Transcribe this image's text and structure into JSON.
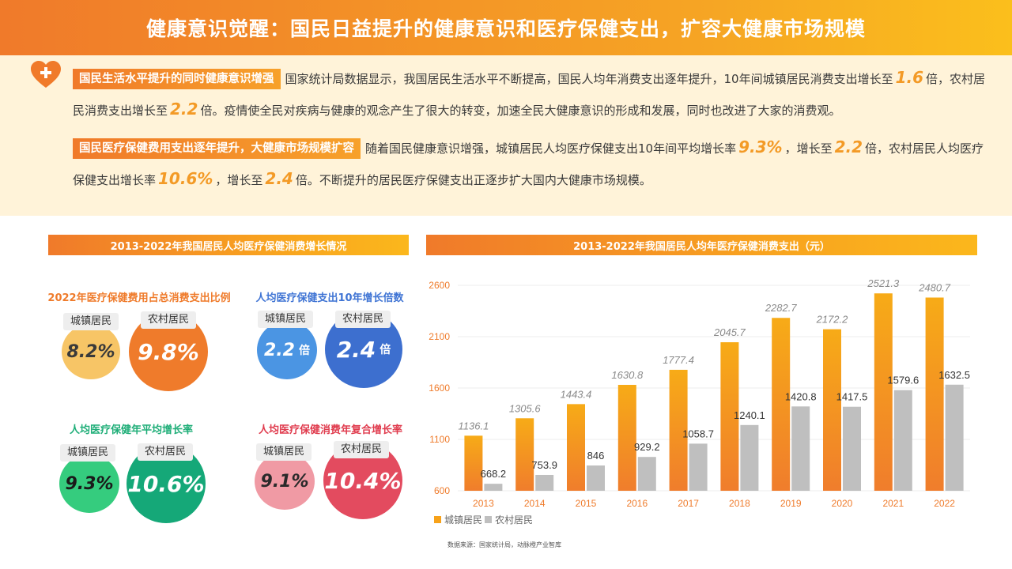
{
  "header": {
    "title": "健康意识觉醒：国民日益提升的健康意识和医疗保健支出，扩容大健康市场规模"
  },
  "intro": {
    "p1": {
      "tag": "国民生活水平提升的同时健康意识增强",
      "t1": "国家统计局数据显示，我国居民生活水平不断提高，国民人均年消费支出逐年提升，10年间城镇居民消费支出增长至",
      "n1": "1.6",
      "t2": "倍，农村居民消费支出增长至",
      "n2": "2.2",
      "t3": "倍。疫情使全民对疾病与健康的观念产生了很大的转变，加速全民大健康意识的形成和发展，同时也改进了大家的消费观。"
    },
    "p2": {
      "tag": "国民医疗保健费用支出逐年提升，大健康市场规模扩容",
      "t1": "随着国民健康意识增强，城镇居民人均医疗保健支出10年间平均增长率",
      "n1": "9.3%",
      "t2": "，增长至",
      "n2": "2.2",
      "t3": "倍，农村居民人均医疗保健支出增长率",
      "n3": "10.6%",
      "t4": "，增长至",
      "n4": "2.4",
      "t5": "倍。不断提升的居民医疗保健支出正逐步扩大国内大健康市场规模。"
    }
  },
  "left_panel": {
    "title": "2013-2022年我国居民人均医疗保健消费增长情况",
    "blocks": [
      {
        "title": "2022年医疗保健费用占总消费支出比例",
        "title_color": "#ef7b2b",
        "urban_label": "城镇居民",
        "urban_value": "8.2%",
        "urban_color": "#f7c566",
        "urban_text": "#3a3a3a",
        "rural_label": "农村居民",
        "rural_value": "9.8%",
        "rural_color": "#ef7b2b",
        "unit": ""
      },
      {
        "title": "人均医疗保健支出10年增长倍数",
        "title_color": "#3f74d4",
        "urban_label": "城镇居民",
        "urban_value": "2.2",
        "urban_color": "#4b95e3",
        "urban_text": "#ffffff",
        "rural_label": "农村居民",
        "rural_value": "2.4",
        "rural_color": "#3d6fcf",
        "unit": "倍"
      },
      {
        "title": "人均医疗保健年平均增长率",
        "title_color": "#1fae78",
        "urban_label": "城镇居民",
        "urban_value": "9.3%",
        "urban_color": "#35cc7e",
        "urban_text": "#1a1a1a",
        "rural_label": "农村居民",
        "rural_value": "10.6%",
        "rural_color": "#15a878",
        "unit": ""
      },
      {
        "title": "人均医疗保健消费年复合增长率",
        "title_color": "#e03c4e",
        "urban_label": "城镇居民",
        "urban_value": "9.1%",
        "urban_color": "#f09aa4",
        "urban_text": "#2a2a2a",
        "rural_label": "农村居民",
        "rural_value": "10.4%",
        "rural_color": "#e34b5f",
        "unit": ""
      }
    ]
  },
  "chart_title": "2013-2022年我国居民人均年医疗保健消费支出（元）",
  "chart_data": {
    "type": "bar",
    "categories": [
      "2013",
      "2014",
      "2015",
      "2016",
      "2017",
      "2018",
      "2019",
      "2020",
      "2021",
      "2022"
    ],
    "series": [
      {
        "name": "城镇居民",
        "values": [
          1136.1,
          1305.6,
          1443.4,
          1630.8,
          1777.4,
          2045.7,
          2282.7,
          2172.2,
          2521.3,
          2480.7
        ],
        "color": "#f7a21a"
      },
      {
        "name": "农村居民",
        "values": [
          668.2,
          753.9,
          846,
          929.2,
          1058.7,
          1240.1,
          1420.8,
          1417.5,
          1579.6,
          1632.5
        ],
        "color": "#bfbfbf"
      }
    ],
    "yticks": [
      "600",
      "1100",
      "1600",
      "2100",
      "2600"
    ],
    "ylim": [
      600,
      2600
    ],
    "grid": true,
    "legend_position": "bottom-left"
  },
  "source": "数据来源：国家统计局，动脉橙产业智库"
}
